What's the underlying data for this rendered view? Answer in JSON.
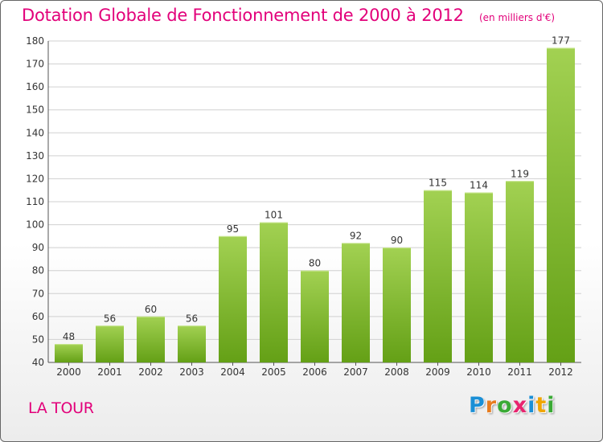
{
  "title": "Dotation Globale de Fonctionnement de 2000 à 2012",
  "subtitle": "(en milliers d'€)",
  "commune": "LA TOUR",
  "logo": {
    "text": "Proxiti",
    "letter_colors": [
      "#1a8fd6",
      "#e87c1e",
      "#3aaa35",
      "#e8246f",
      "#1a8fd6",
      "#f0a500",
      "#3aaa35"
    ]
  },
  "colors": {
    "title": "#e2007a",
    "bar_top": "#a2d152",
    "bar_bottom": "#64a016",
    "grid": "#d0d0d0"
  },
  "chart_data": {
    "type": "bar",
    "title": "Dotation Globale de Fonctionnement de 2000 à 2012",
    "subtitle": "(en milliers d'€)",
    "categories": [
      "2000",
      "2001",
      "2002",
      "2003",
      "2004",
      "2005",
      "2006",
      "2007",
      "2008",
      "2009",
      "2010",
      "2011",
      "2012"
    ],
    "values": [
      48,
      56,
      60,
      56,
      95,
      101,
      80,
      92,
      90,
      115,
      114,
      119,
      177
    ],
    "ylim": [
      40,
      180
    ],
    "yticks": [
      40,
      50,
      60,
      70,
      80,
      90,
      100,
      110,
      120,
      130,
      140,
      150,
      160,
      170,
      180
    ],
    "grid": true,
    "data_labels": true
  }
}
